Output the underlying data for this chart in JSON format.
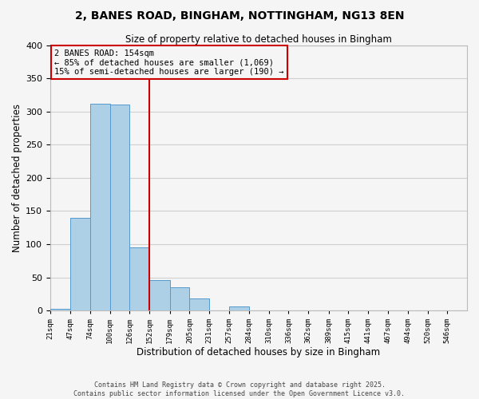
{
  "title1": "2, BANES ROAD, BINGHAM, NOTTINGHAM, NG13 8EN",
  "title2": "Size of property relative to detached houses in Bingham",
  "xlabel": "Distribution of detached houses by size in Bingham",
  "ylabel": "Number of detached properties",
  "bin_labels": [
    "21sqm",
    "47sqm",
    "74sqm",
    "100sqm",
    "126sqm",
    "152sqm",
    "179sqm",
    "205sqm",
    "231sqm",
    "257sqm",
    "284sqm",
    "310sqm",
    "336sqm",
    "362sqm",
    "389sqm",
    "415sqm",
    "441sqm",
    "467sqm",
    "494sqm",
    "520sqm",
    "546sqm"
  ],
  "bin_edges": [
    21,
    47,
    74,
    100,
    126,
    152,
    179,
    205,
    231,
    257,
    284,
    310,
    336,
    362,
    389,
    415,
    441,
    467,
    494,
    520,
    546
  ],
  "bar_heights": [
    3,
    140,
    312,
    311,
    95,
    46,
    35,
    18,
    0,
    6,
    0,
    0,
    0,
    0,
    0,
    0,
    0,
    0,
    0,
    0
  ],
  "bar_color": "#aed0e6",
  "bar_edge_color": "#5599cc",
  "vline_x": 152,
  "vline_color": "#cc0000",
  "annotation_line1": "2 BANES ROAD: 154sqm",
  "annotation_line2": "← 85% of detached houses are smaller (1,069)",
  "annotation_line3": "15% of semi-detached houses are larger (190) →",
  "box_edge_color": "#cc0000",
  "ylim": [
    0,
    400
  ],
  "yticks": [
    0,
    50,
    100,
    150,
    200,
    250,
    300,
    350,
    400
  ],
  "grid_color": "#d0d0d0",
  "bg_color": "#f5f5f5",
  "footnote1": "Contains HM Land Registry data © Crown copyright and database right 2025.",
  "footnote2": "Contains public sector information licensed under the Open Government Licence v3.0."
}
